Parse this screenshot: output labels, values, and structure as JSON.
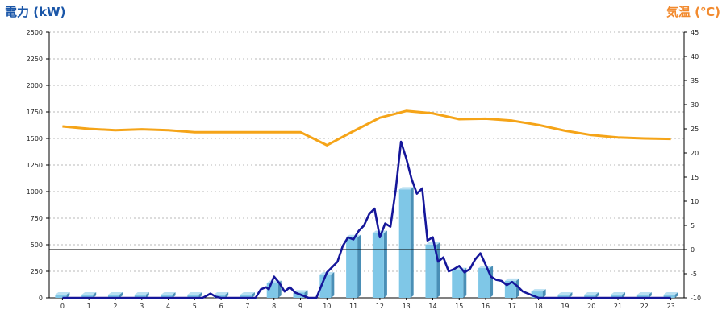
{
  "chart_data": {
    "type": "bar",
    "title": "",
    "ylabel": "電力 (kW)",
    "y2label": "気温 (℃)",
    "xlabel": "",
    "categories": [
      "0",
      "1",
      "2",
      "3",
      "4",
      "5",
      "6",
      "7",
      "8",
      "9",
      "10",
      "11",
      "12",
      "13",
      "14",
      "15",
      "16",
      "17",
      "18",
      "19",
      "20",
      "21",
      "22",
      "23"
    ],
    "ylim": [
      0,
      2500
    ],
    "y2lim": [
      -10,
      45
    ],
    "yticks": [
      "0",
      "250",
      "500",
      "750",
      "1000",
      "1250",
      "1500",
      "1750",
      "2000",
      "2250",
      "2500"
    ],
    "y2ticks": [
      "-10",
      "-5",
      "0",
      "5",
      "10",
      "15",
      "20",
      "25",
      "30",
      "35",
      "40",
      "45"
    ],
    "grid": true,
    "series": [
      {
        "kind": "bar",
        "axis": "left",
        "values": [
          30,
          30,
          30,
          30,
          30,
          30,
          30,
          30,
          140,
          50,
          220,
          570,
          610,
          1020,
          500,
          260,
          280,
          160,
          60,
          30,
          30,
          30,
          30,
          30
        ]
      },
      {
        "kind": "line",
        "axis": "left",
        "x": [
          0,
          0.5,
          1,
          1.5,
          2,
          2.5,
          3,
          3.5,
          4,
          4.5,
          5,
          5.3,
          5.6,
          5.8,
          6,
          6.5,
          7,
          7.3,
          7.5,
          7.7,
          7.8,
          8,
          8.2,
          8.4,
          8.6,
          8.8,
          9,
          9.3,
          9.6,
          10,
          10.2,
          10.4,
          10.6,
          10.8,
          11,
          11.2,
          11.4,
          11.6,
          11.8,
          12,
          12.2,
          12.4,
          12.6,
          12.8,
          13,
          13.2,
          13.4,
          13.6,
          13.8,
          14,
          14.2,
          14.4,
          14.6,
          14.8,
          15,
          15.2,
          15.4,
          15.6,
          15.8,
          16,
          16.2,
          16.4,
          16.6,
          16.8,
          17,
          17.2,
          17.4,
          17.6,
          17.8,
          18,
          18.5,
          19,
          20,
          21,
          22,
          23
        ],
        "values": [
          0,
          0,
          0,
          0,
          0,
          0,
          0,
          0,
          0,
          0,
          0,
          0,
          40,
          10,
          0,
          0,
          0,
          0,
          80,
          100,
          80,
          200,
          140,
          60,
          100,
          50,
          30,
          0,
          0,
          240,
          290,
          340,
          490,
          570,
          550,
          630,
          680,
          790,
          840,
          570,
          700,
          670,
          1020,
          1470,
          1310,
          1120,
          980,
          1030,
          540,
          570,
          340,
          380,
          250,
          270,
          300,
          240,
          270,
          360,
          420,
          310,
          200,
          170,
          160,
          120,
          150,
          110,
          60,
          40,
          20,
          0,
          0,
          0,
          0,
          0,
          0,
          0
        ]
      },
      {
        "kind": "line",
        "axis": "right",
        "values": [
          25.5,
          25.0,
          24.7,
          24.9,
          24.7,
          24.3,
          24.3,
          24.3,
          24.3,
          24.3,
          21.6,
          24.5,
          27.3,
          28.7,
          28.2,
          27.0,
          27.1,
          26.7,
          25.8,
          24.6,
          23.7,
          23.2,
          23.0,
          22.9
        ]
      }
    ],
    "colors": {
      "left_title": "#1a56a8",
      "right_title": "#f28a2e",
      "bar_front": "#7fc7e7",
      "bar_side": "#4a8fb6",
      "bar_top": "#b9e0f2",
      "power_line": "#15169a",
      "temp_line": "#f5a418",
      "grid": "#b8b8b8",
      "zero_line": "#000000"
    }
  }
}
